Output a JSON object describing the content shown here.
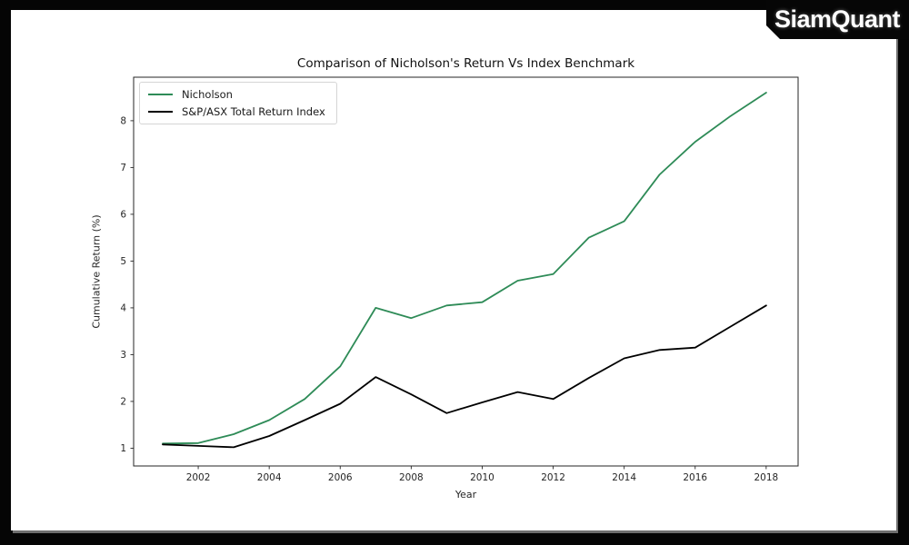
{
  "logo": {
    "text": "SiamQuant"
  },
  "chart_data": {
    "type": "line",
    "title": "Comparison of Nicholson's Return Vs Index Benchmark",
    "xlabel": "Year",
    "ylabel": "Cumulative Return (%)",
    "grid": false,
    "legend_position": "upper left",
    "x": [
      2001,
      2002,
      2003,
      2004,
      2005,
      2006,
      2007,
      2008,
      2009,
      2010,
      2011,
      2012,
      2013,
      2014,
      2015,
      2016,
      2017,
      2018
    ],
    "series": [
      {
        "name": "Nicholson",
        "color": "#2e8b57",
        "values": [
          1.1,
          1.11,
          1.3,
          1.6,
          2.05,
          2.75,
          4.0,
          3.78,
          4.05,
          4.12,
          4.58,
          4.72,
          5.5,
          5.85,
          6.85,
          7.55,
          8.1,
          8.6
        ]
      },
      {
        "name": "S&P/ASX Total Return Index",
        "color": "#000000",
        "values": [
          1.08,
          1.05,
          1.02,
          1.26,
          1.6,
          1.95,
          2.52,
          2.15,
          1.75,
          1.98,
          2.2,
          2.05,
          2.5,
          2.92,
          3.1,
          3.15,
          3.6,
          4.05
        ]
      }
    ],
    "xticks": [
      2002,
      2004,
      2006,
      2008,
      2010,
      2012,
      2014,
      2016,
      2018
    ],
    "yticks": [
      1,
      2,
      3,
      4,
      5,
      6,
      7,
      8
    ],
    "xlim": [
      2000.18,
      2018.9
    ],
    "ylim": [
      0.62,
      8.93
    ],
    "axis_color": "#262626",
    "tick_label_color": "#262626"
  }
}
